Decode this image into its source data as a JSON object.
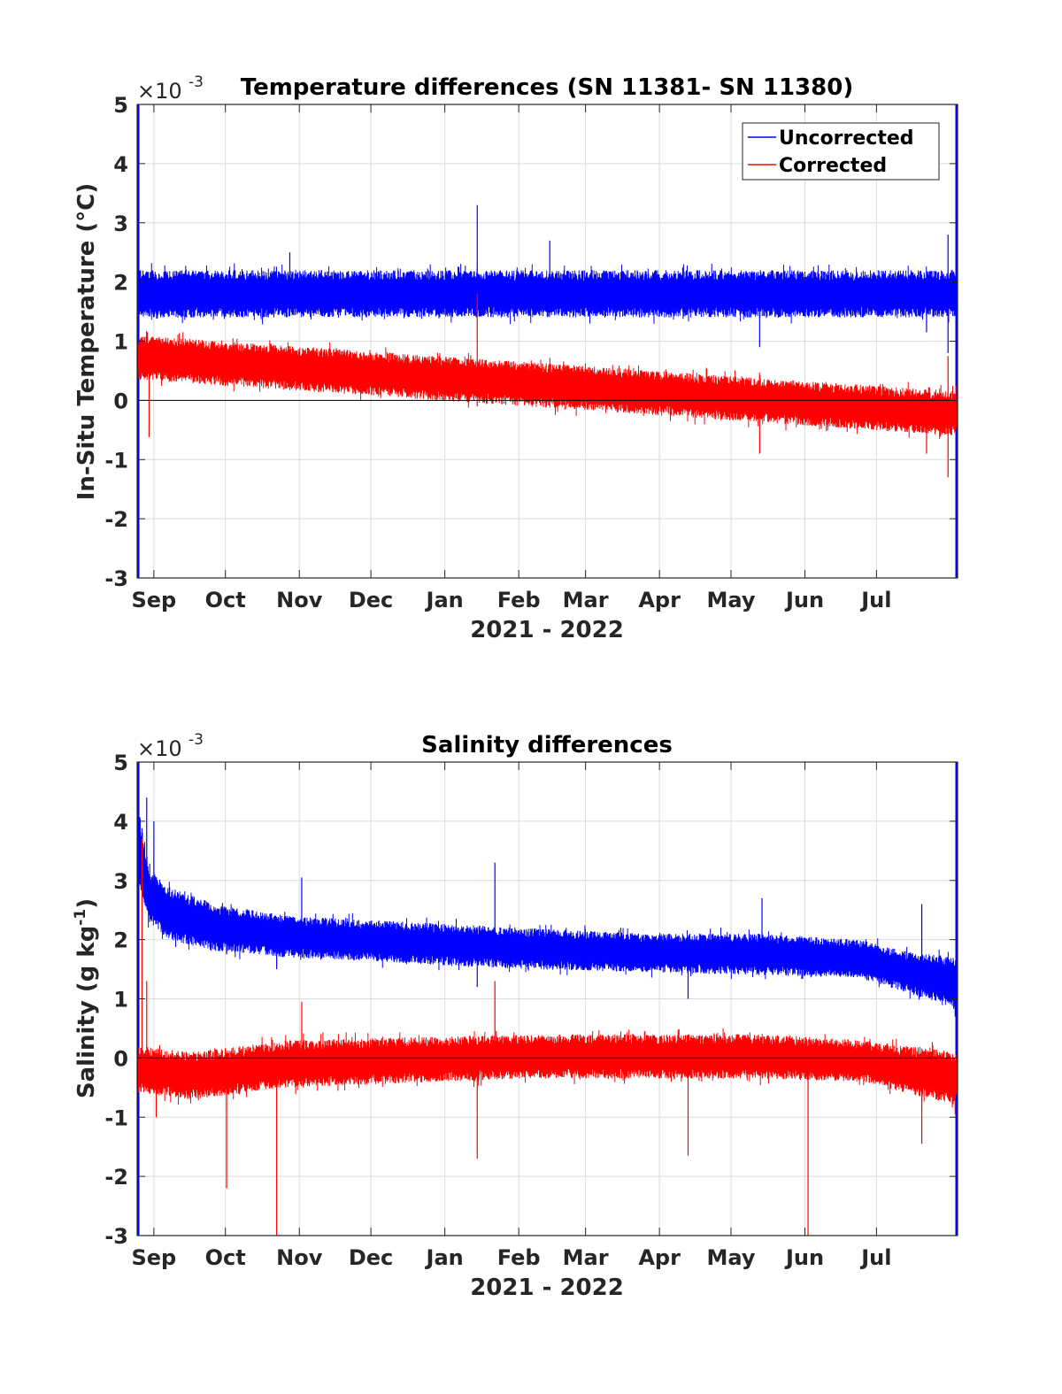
{
  "chart_data": [
    {
      "type": "line",
      "title": "Temperature differences (SN 11381- SN 11380)",
      "xlabel": "2021 - 2022",
      "ylabel": "In-Situ Temperature (°C)",
      "yexponent": "×10",
      "yexponent_power": "-3",
      "ylim": [
        -3,
        5
      ],
      "yticks": [
        "-3",
        "-2",
        "-1",
        "0",
        "1",
        "2",
        "3",
        "4",
        "5"
      ],
      "xlim": [
        237,
        581
      ],
      "xticks": [
        {
          "label": "Sep",
          "day": 244
        },
        {
          "label": "Oct",
          "day": 274
        },
        {
          "label": "Nov",
          "day": 305
        },
        {
          "label": "Dec",
          "day": 335
        },
        {
          "label": "Jan",
          "day": 366
        },
        {
          "label": "Feb",
          "day": 397
        },
        {
          "label": "Mar",
          "day": 425
        },
        {
          "label": "Apr",
          "day": 456
        },
        {
          "label": "May",
          "day": 486
        },
        {
          "label": "Jun",
          "day": 517
        },
        {
          "label": "Jul",
          "day": 547
        }
      ],
      "legend": {
        "position": "top-right",
        "entries": [
          "Uncorrected",
          "Corrected"
        ]
      },
      "series": [
        {
          "name": "Uncorrected",
          "color": "#0000ff",
          "trend": {
            "x": [
              237,
              581
            ],
            "y": [
              1.8,
              1.8
            ]
          },
          "band": {
            "upper": [
              [
                237,
                2.2
              ],
              [
                581,
                2.2
              ]
            ],
            "lower": [
              [
                237,
                1.4
              ],
              [
                581,
                1.4
              ]
            ]
          },
          "spikes": [
            [
              379.6,
              3.3
            ],
            [
              410,
              2.7
            ],
            [
              498,
              0.9
            ],
            [
              577,
              2.8
            ],
            [
              577,
              0.8
            ],
            [
              568,
              1.15
            ],
            [
              301,
              2.5
            ]
          ]
        },
        {
          "name": "Corrected",
          "color": "#ff0000",
          "trend": {
            "x": [
              237,
              581
            ],
            "y": [
              0.75,
              -0.2
            ]
          },
          "band": {
            "upper": [
              [
                237,
                1.1
              ],
              [
                581,
                0.15
              ]
            ],
            "lower": [
              [
                237,
                0.35
              ],
              [
                581,
                -0.6
              ]
            ]
          },
          "spikes": [
            [
              242,
              -0.62
            ],
            [
              379.6,
              1.8
            ],
            [
              379.6,
              -0.1
            ],
            [
              498,
              -0.9
            ],
            [
              577,
              0.75
            ],
            [
              577,
              -1.3
            ],
            [
              568,
              -0.9
            ]
          ]
        }
      ],
      "zero_line": true,
      "grid": true
    },
    {
      "type": "line",
      "title": "Salinity differences",
      "xlabel": "2021 - 2022",
      "ylabel": "Salinity (g kg",
      "ylabel_sup": "-1",
      "ylabel_end": ")",
      "yexponent": "×10",
      "yexponent_power": "-3",
      "ylim": [
        -3,
        5
      ],
      "yticks": [
        "-3",
        "-2",
        "-1",
        "0",
        "1",
        "2",
        "3",
        "4",
        "5"
      ],
      "xlim": [
        237,
        581
      ],
      "xticks": [
        {
          "label": "Sep",
          "day": 244
        },
        {
          "label": "Oct",
          "day": 274
        },
        {
          "label": "Nov",
          "day": 305
        },
        {
          "label": "Dec",
          "day": 335
        },
        {
          "label": "Jan",
          "day": 366
        },
        {
          "label": "Feb",
          "day": 397
        },
        {
          "label": "Mar",
          "day": 425
        },
        {
          "label": "Apr",
          "day": 456
        },
        {
          "label": "May",
          "day": 486
        },
        {
          "label": "Jun",
          "day": 517
        },
        {
          "label": "Jul",
          "day": 547
        }
      ],
      "series": [
        {
          "name": "Uncorrected",
          "color": "#0000ff",
          "trend": {
            "x": [
              238,
              245,
              260,
              280,
              320,
              380,
              440,
              500,
              540,
              560,
              581
            ],
            "y": [
              3.5,
              2.6,
              2.3,
              2.15,
              2.05,
              1.95,
              1.85,
              1.8,
              1.7,
              1.5,
              1.3
            ]
          },
          "band": {
            "upper": [
              [
                238,
                4.2
              ],
              [
                242,
                3.2
              ],
              [
                250,
                2.9
              ],
              [
                270,
                2.6
              ],
              [
                300,
                2.4
              ],
              [
                350,
                2.3
              ],
              [
                400,
                2.2
              ],
              [
                450,
                2.1
              ],
              [
                500,
                2.1
              ],
              [
                540,
                2.0
              ],
              [
                560,
                1.8
              ],
              [
                581,
                1.7
              ]
            ],
            "lower": [
              [
                238,
                2.8
              ],
              [
                242,
                2.3
              ],
              [
                250,
                2.0
              ],
              [
                270,
                1.8
              ],
              [
                300,
                1.7
              ],
              [
                350,
                1.6
              ],
              [
                400,
                1.5
              ],
              [
                450,
                1.45
              ],
              [
                500,
                1.4
              ],
              [
                540,
                1.35
              ],
              [
                560,
                1.1
              ],
              [
                581,
                0.8
              ]
            ]
          },
          "spikes": [
            [
              241,
              4.4
            ],
            [
              244,
              4.0
            ],
            [
              274.5,
              1.75
            ],
            [
              295.5,
              1.5
            ],
            [
              306,
              3.05
            ],
            [
              379.6,
              1.2
            ],
            [
              387,
              3.3
            ],
            [
              468,
              1.0
            ],
            [
              499,
              2.7
            ],
            [
              566,
              2.6
            ],
            [
              580,
              0.7
            ]
          ]
        },
        {
          "name": "Corrected",
          "color": "#ff0000",
          "trend": {
            "x": [
              238,
              300,
              400,
              500,
              581
            ],
            "y": [
              -0.2,
              -0.1,
              0.0,
              0.0,
              -0.15
            ]
          },
          "band": {
            "upper": [
              [
                238,
                0.2
              ],
              [
                260,
                0.1
              ],
              [
                300,
                0.3
              ],
              [
                400,
                0.4
              ],
              [
                500,
                0.4
              ],
              [
                540,
                0.3
              ],
              [
                581,
                0.1
              ]
            ],
            "lower": [
              [
                238,
                -0.6
              ],
              [
                260,
                -0.7
              ],
              [
                300,
                -0.5
              ],
              [
                400,
                -0.35
              ],
              [
                500,
                -0.35
              ],
              [
                540,
                -0.4
              ],
              [
                581,
                -0.8
              ]
            ]
          },
          "spikes": [
            [
              239,
              3.7
            ],
            [
              241,
              1.3
            ],
            [
              245,
              -1.0
            ],
            [
              274.5,
              -2.2
            ],
            [
              295.5,
              -3.0
            ],
            [
              306,
              0.95
            ],
            [
              379.6,
              -1.7
            ],
            [
              387,
              1.3
            ],
            [
              468,
              -1.65
            ],
            [
              518.3,
              -3.0
            ],
            [
              566,
              -1.45
            ],
            [
              580,
              -0.95
            ]
          ]
        }
      ],
      "zero_line": true,
      "grid": true
    }
  ]
}
